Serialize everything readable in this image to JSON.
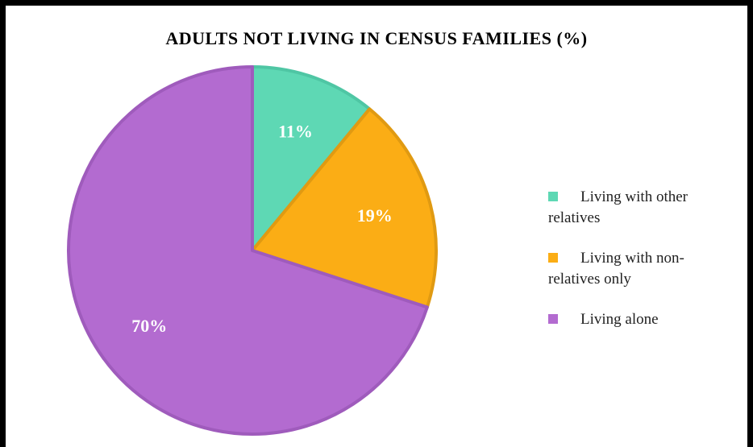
{
  "chart_data": {
    "type": "pie",
    "title": "ADULTS NOT LIVING IN CENSUS FAMILIES (%)",
    "slices": [
      {
        "label": "Living with other relatives",
        "value": 11,
        "display": "11%",
        "color": "#5ED8B4",
        "edge": "#4FC6A4"
      },
      {
        "label": "Living with non-relatives only",
        "value": 19,
        "display": "19%",
        "color": "#FBAD15",
        "edge": "#E09A12"
      },
      {
        "label": "Living alone",
        "value": 70,
        "display": "70%",
        "color": "#B36BD0",
        "edge": "#9F5BBC"
      }
    ],
    "legend_position": "right"
  }
}
